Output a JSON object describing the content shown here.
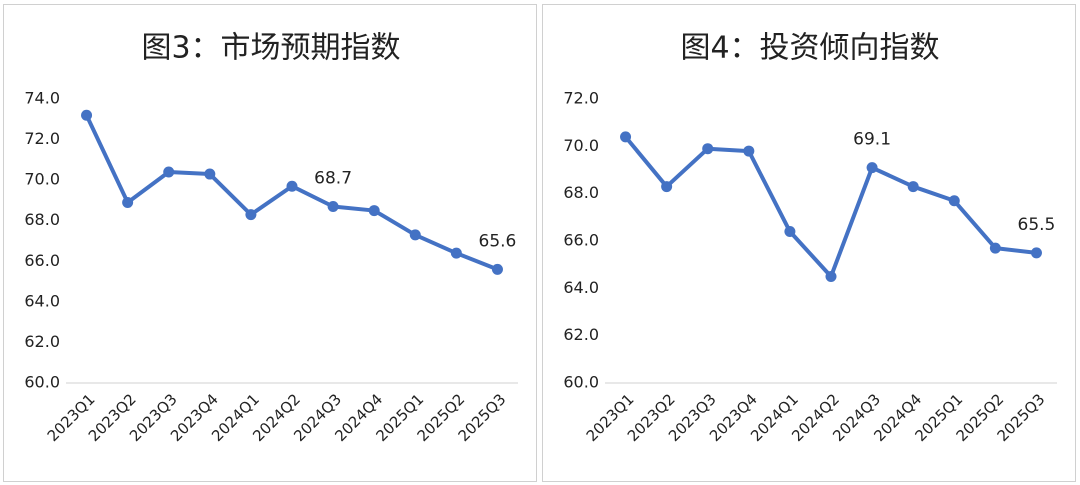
{
  "chart_data": [
    {
      "type": "line",
      "title": "图3：市场预期指数",
      "categories": [
        "2023Q1",
        "2023Q2",
        "2023Q3",
        "2023Q4",
        "2024Q1",
        "2024Q2",
        "2024Q3",
        "2024Q4",
        "2025Q1",
        "2025Q2",
        "2025Q3"
      ],
      "values": [
        73.2,
        68.9,
        70.4,
        70.3,
        68.3,
        69.7,
        68.7,
        68.5,
        67.3,
        66.4,
        65.6
      ],
      "value_labels": [
        null,
        null,
        null,
        null,
        null,
        null,
        "68.7",
        null,
        null,
        null,
        "65.6"
      ],
      "color": "#4472c4",
      "ylim": [
        60,
        74
      ],
      "yticks": [
        {
          "value": 60,
          "label": "60.0"
        },
        {
          "value": 62,
          "label": "62.0"
        },
        {
          "value": 64,
          "label": "64.0"
        },
        {
          "value": 66,
          "label": "66.0"
        },
        {
          "value": 68,
          "label": "68.0"
        },
        {
          "value": 70,
          "label": "70.0"
        },
        {
          "value": 72,
          "label": "72.0"
        },
        {
          "value": 74,
          "label": "74.0"
        }
      ]
    },
    {
      "type": "line",
      "title": "图4：投资倾向指数",
      "categories": [
        "2023Q1",
        "2023Q2",
        "2023Q3",
        "2023Q4",
        "2024Q1",
        "2024Q2",
        "2024Q3",
        "2024Q4",
        "2025Q1",
        "2025Q2",
        "2025Q3"
      ],
      "values": [
        70.4,
        68.3,
        69.9,
        69.8,
        66.4,
        64.5,
        69.1,
        68.3,
        67.7,
        65.7,
        65.5
      ],
      "value_labels": [
        null,
        null,
        null,
        null,
        null,
        null,
        "69.1",
        null,
        null,
        null,
        "65.5"
      ],
      "color": "#4472c4",
      "ylim": [
        60,
        72
      ],
      "yticks": [
        {
          "value": 60,
          "label": "60.0"
        },
        {
          "value": 62,
          "label": "62.0"
        },
        {
          "value": 64,
          "label": "64.0"
        },
        {
          "value": 66,
          "label": "66.0"
        },
        {
          "value": 68,
          "label": "68.0"
        },
        {
          "value": 70,
          "label": "70.0"
        },
        {
          "value": 72,
          "label": "72.0"
        }
      ]
    }
  ]
}
